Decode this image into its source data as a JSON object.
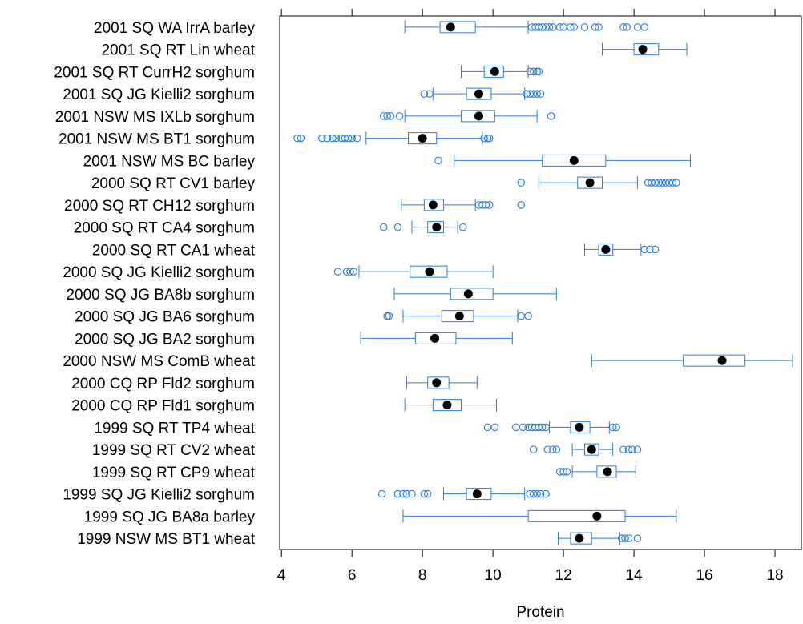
{
  "chart_data": {
    "type": "boxplot",
    "orientation": "horizontal",
    "xlabel": "Protein",
    "xlim": [
      3.95,
      18.75
    ],
    "xticks": [
      4,
      6,
      8,
      10,
      12,
      14,
      16,
      18
    ],
    "tick_labels": [
      "4",
      "6",
      "8",
      "10",
      "12",
      "14",
      "16",
      "18"
    ],
    "colors": {
      "box": "#2a7ce0",
      "median": "#000000",
      "axis": "#000000"
    },
    "categories": [
      "2001 SQ WA IrrA barley",
      "2001 SQ RT Lin wheat",
      "2001 SQ RT CurrH2 sorghum",
      "2001 SQ JG Kielli2 sorghum",
      "2001 NSW MS IXLb sorghum",
      "2001 NSW MS BT1 sorghum",
      "2001 NSW MS BC barley",
      "2000 SQ RT CV1 barley",
      "2000 SQ RT CH12 sorghum",
      "2000 SQ RT CA4 sorghum",
      "2000 SQ RT CA1 wheat",
      "2000 SQ JG Kielli2 sorghum",
      "2000 SQ JG BA8b sorghum",
      "2000 SQ JG BA6 sorghum",
      "2000 SQ JG BA2 sorghum",
      "2000 NSW MS ComB wheat",
      "2000 CQ RP Fld2 sorghum",
      "2000 CQ RP Fld1 sorghum",
      "1999 SQ RT TP4 wheat",
      "1999 SQ RT CV2 wheat",
      "1999 SQ RT CP9 wheat",
      "1999 SQ JG Kielli2 sorghum",
      "1999 SQ JG BA8a barley",
      "1999 NSW MS BT1 wheat"
    ],
    "boxes": [
      {
        "wlo": 7.5,
        "q1": 8.5,
        "med": 8.8,
        "q3": 9.5,
        "whi": 11.0,
        "outliers": [
          11.1,
          11.2,
          11.3,
          11.4,
          11.5,
          11.6,
          11.7,
          11.9,
          12.0,
          12.2,
          12.3,
          12.6,
          12.9,
          13.0,
          13.7,
          13.8,
          14.1,
          14.3
        ]
      },
      {
        "wlo": 13.1,
        "q1": 14.0,
        "med": 14.25,
        "q3": 14.7,
        "whi": 15.5,
        "outliers": []
      },
      {
        "wlo": 9.1,
        "q1": 9.75,
        "med": 10.05,
        "q3": 10.3,
        "whi": 11.0,
        "outliers": [
          11.05,
          11.15,
          11.25,
          11.3
        ]
      },
      {
        "wlo": 8.3,
        "q1": 9.25,
        "med": 9.6,
        "q3": 9.95,
        "whi": 10.9,
        "outliers": [
          8.05,
          8.2,
          10.95,
          11.05,
          11.15,
          11.25,
          11.35
        ]
      },
      {
        "wlo": 7.5,
        "q1": 9.1,
        "med": 9.6,
        "q3": 10.05,
        "whi": 11.25,
        "outliers": [
          6.9,
          7.0,
          7.1,
          7.35,
          11.65
        ]
      },
      {
        "wlo": 6.4,
        "q1": 7.6,
        "med": 8.0,
        "q3": 8.4,
        "whi": 9.7,
        "outliers": [
          4.45,
          4.55,
          5.15,
          5.3,
          5.45,
          5.55,
          5.7,
          5.8,
          5.9,
          6.0,
          6.15,
          9.75,
          9.85,
          9.9
        ]
      },
      {
        "wlo": 8.9,
        "q1": 11.4,
        "med": 12.3,
        "q3": 13.2,
        "whi": 15.6,
        "outliers": [
          8.45
        ]
      },
      {
        "wlo": 11.3,
        "q1": 12.4,
        "med": 12.75,
        "q3": 13.1,
        "whi": 14.1,
        "outliers": [
          10.8,
          14.4,
          14.5,
          14.6,
          14.7,
          14.8,
          14.9,
          15.0,
          15.1,
          15.2
        ]
      },
      {
        "wlo": 7.4,
        "q1": 8.05,
        "med": 8.3,
        "q3": 8.6,
        "whi": 9.5,
        "outliers": [
          9.6,
          9.7,
          9.8,
          9.9,
          10.8
        ]
      },
      {
        "wlo": 7.7,
        "q1": 8.15,
        "med": 8.4,
        "q3": 8.6,
        "whi": 9.0,
        "outliers": [
          6.9,
          7.3,
          9.15
        ]
      },
      {
        "wlo": 12.6,
        "q1": 13.0,
        "med": 13.2,
        "q3": 13.4,
        "whi": 14.2,
        "outliers": [
          14.3,
          14.45,
          14.6
        ]
      },
      {
        "wlo": 6.2,
        "q1": 7.65,
        "med": 8.2,
        "q3": 8.7,
        "whi": 10.0,
        "outliers": [
          5.6,
          5.85,
          5.95,
          6.05
        ]
      },
      {
        "wlo": 7.2,
        "q1": 8.8,
        "med": 9.3,
        "q3": 10.0,
        "whi": 11.8,
        "outliers": []
      },
      {
        "wlo": 7.45,
        "q1": 8.55,
        "med": 9.05,
        "q3": 9.45,
        "whi": 10.7,
        "outliers": [
          7.0,
          7.05,
          10.8,
          11.0
        ]
      },
      {
        "wlo": 6.25,
        "q1": 7.8,
        "med": 8.35,
        "q3": 8.95,
        "whi": 10.55,
        "outliers": []
      },
      {
        "wlo": 12.8,
        "q1": 15.4,
        "med": 16.5,
        "q3": 17.15,
        "whi": 18.5,
        "outliers": []
      },
      {
        "wlo": 7.55,
        "q1": 8.15,
        "med": 8.4,
        "q3": 8.75,
        "whi": 9.55,
        "outliers": []
      },
      {
        "wlo": 7.5,
        "q1": 8.3,
        "med": 8.7,
        "q3": 9.1,
        "whi": 10.1,
        "outliers": []
      },
      {
        "wlo": 11.6,
        "q1": 12.2,
        "med": 12.45,
        "q3": 12.75,
        "whi": 13.3,
        "outliers": [
          9.85,
          10.05,
          10.65,
          10.85,
          11.0,
          11.1,
          11.2,
          11.3,
          11.4,
          11.5,
          13.4,
          13.5
        ]
      },
      {
        "wlo": 12.25,
        "q1": 12.6,
        "med": 12.8,
        "q3": 13.0,
        "whi": 13.4,
        "outliers": [
          11.15,
          11.55,
          11.7,
          11.8,
          13.7,
          13.85,
          13.95,
          14.1
        ]
      },
      {
        "wlo": 12.25,
        "q1": 12.95,
        "med": 13.25,
        "q3": 13.5,
        "whi": 14.05,
        "outliers": [
          11.9,
          12.0,
          12.1
        ]
      },
      {
        "wlo": 8.6,
        "q1": 9.25,
        "med": 9.55,
        "q3": 9.95,
        "whi": 10.9,
        "outliers": [
          6.85,
          7.3,
          7.45,
          7.55,
          7.7,
          8.05,
          8.15,
          11.05,
          11.15,
          11.25,
          11.35,
          11.5
        ]
      },
      {
        "wlo": 7.45,
        "q1": 11.0,
        "med": 12.95,
        "q3": 13.75,
        "whi": 15.2,
        "outliers": []
      },
      {
        "wlo": 11.85,
        "q1": 12.2,
        "med": 12.45,
        "q3": 12.8,
        "whi": 13.6,
        "outliers": [
          13.65,
          13.75,
          13.85,
          14.1
        ]
      }
    ]
  }
}
